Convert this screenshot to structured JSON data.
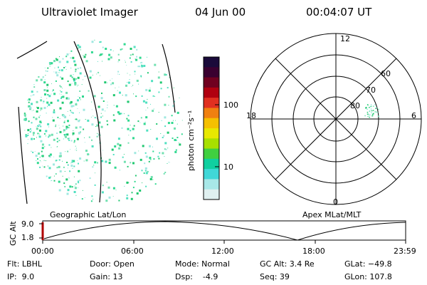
{
  "header": {
    "instrument": "Ultraviolet Imager",
    "date": "04 Jun 00",
    "time": "00:04:07 UT"
  },
  "colorbar": {
    "unit_label": "photon cm⁻²s⁻¹",
    "tick_labels": [
      "100",
      "10"
    ],
    "colors": [
      "#1a0a3a",
      "#3a0030",
      "#700020",
      "#b00010",
      "#e03020",
      "#f08010",
      "#f5c000",
      "#e8e800",
      "#a8e000",
      "#40d040",
      "#10d0a0",
      "#40d8d8",
      "#a8e8e8",
      "#e0f0f0"
    ]
  },
  "left_panel": {
    "caption": "Geographic Lat/Lon"
  },
  "right_panel": {
    "caption": "Apex MLat/MLT",
    "mlt_labels": {
      "top": "12",
      "left": "18",
      "right": "6",
      "bottom": "0"
    },
    "mlat_labels": [
      "60",
      "70",
      "80"
    ]
  },
  "altitude_plot": {
    "ylabel": "GC Alt",
    "y_ticks": [
      "9.0",
      "1.8"
    ],
    "x_ticks": [
      "00:00",
      "06:00",
      "12:00",
      "18:00",
      "23:59"
    ]
  },
  "status": {
    "flt": "Flt: LBHL",
    "ip": "IP:  9.0",
    "door": "Door: Open",
    "gain": "Gain: 13",
    "mode": "Mode: Normal",
    "dsp": "Dsp:    -4.9",
    "gc_alt": "GC Alt: 3.4 Re",
    "seq": "Seq: 39",
    "glat": "GLat: −49.8",
    "glon": "GLon: 107.8"
  },
  "colors": {
    "speckle": [
      "#30d890",
      "#50e0c0",
      "#a0e8e0",
      "#20c870",
      "#70e0b0"
    ]
  }
}
